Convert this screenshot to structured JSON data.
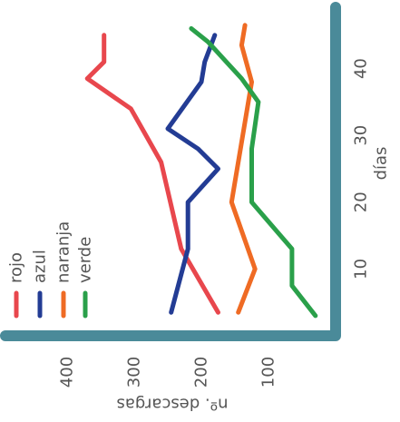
{
  "chart_data": {
    "type": "line",
    "title": "",
    "xlabel": "días",
    "ylabel": "nº. descargas",
    "xlim": [
      0,
      50
    ],
    "ylim": [
      0,
      500
    ],
    "x_ticks": [
      10,
      20,
      30,
      40
    ],
    "y_ticks": [
      100,
      200,
      300,
      400
    ],
    "axis_color": "#4a8a99",
    "legend_position": "bottom-left",
    "series": [
      {
        "name": "rojo",
        "color": "#e8474d",
        "x": [
          3.5,
          13,
          26,
          34,
          38.5,
          41,
          45
        ],
        "y": [
          175,
          230,
          260,
          305,
          370,
          345,
          345
        ]
      },
      {
        "name": "azul",
        "color": "#233c94",
        "x": [
          3.5,
          13,
          20,
          25,
          28,
          31,
          38,
          41,
          45
        ],
        "y": [
          245,
          220,
          220,
          175,
          205,
          250,
          200,
          195,
          180
        ]
      },
      {
        "name": "naranja",
        "color": "#ef6b24",
        "x": [
          3.5,
          10,
          20,
          38,
          43.5,
          46.5
        ],
        "y": [
          145,
          120,
          155,
          125,
          140,
          135
        ]
      },
      {
        "name": "verde",
        "color": "#2aa04a",
        "x": [
          3,
          7.5,
          13,
          20,
          28,
          35,
          38.5,
          44,
          46
        ],
        "y": [
          30,
          65,
          65,
          125,
          125,
          115,
          140,
          190,
          215
        ]
      }
    ]
  }
}
